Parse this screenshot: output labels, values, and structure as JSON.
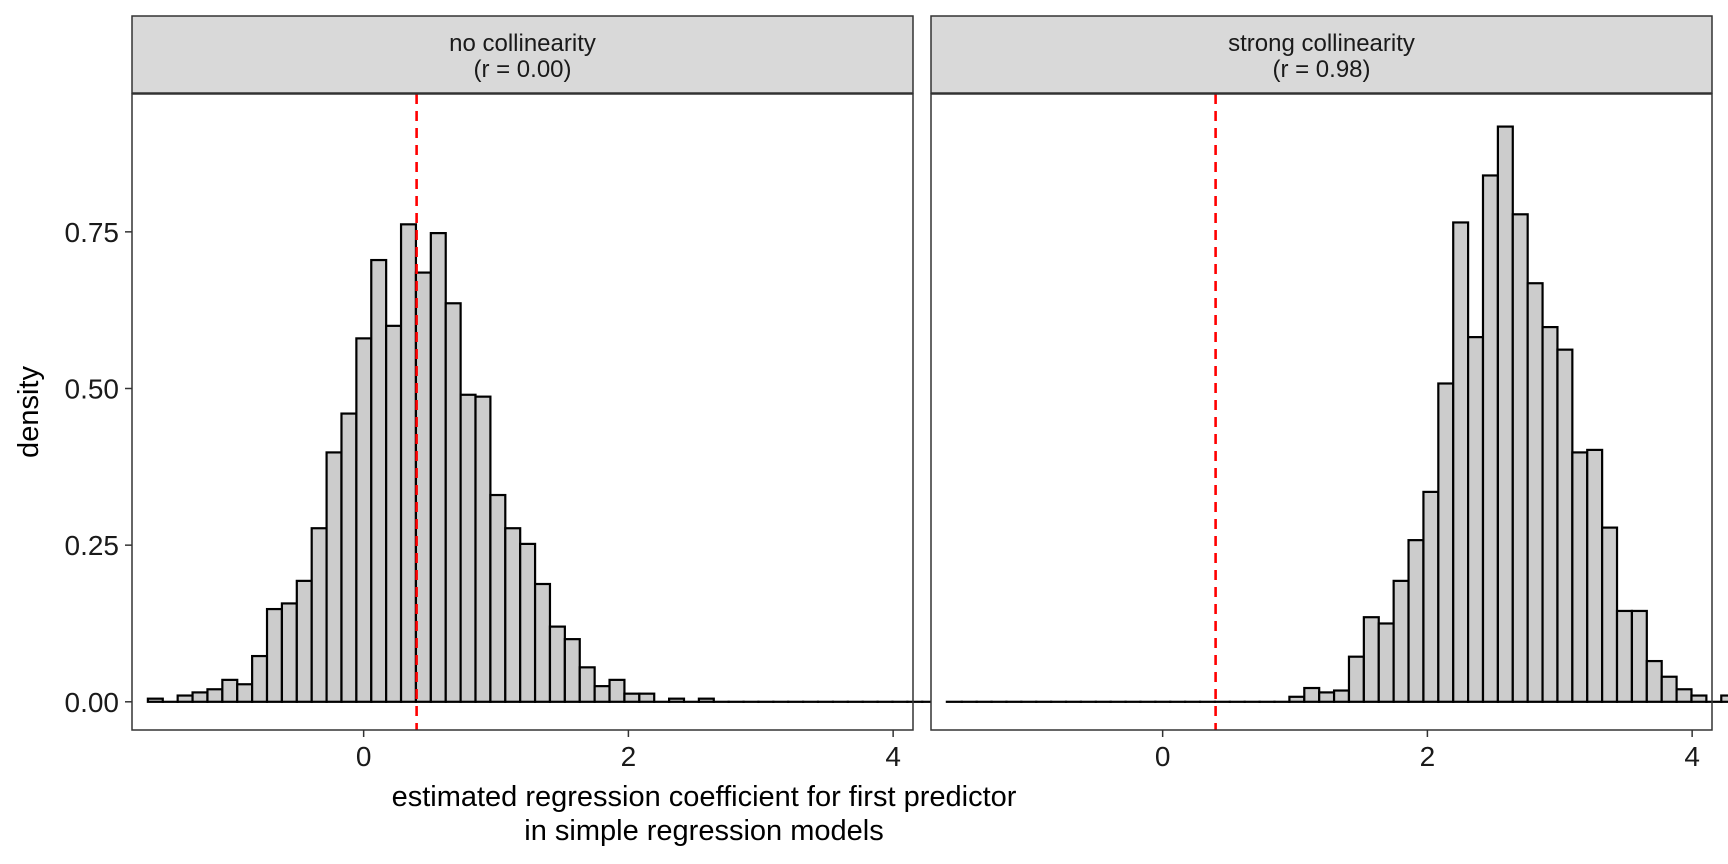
{
  "chart_data": {
    "type": "bar",
    "chart_kind": "faceted histogram",
    "ylabel": "density",
    "xlabel_lines": [
      "estimated regression coefficient for first predictor",
      "in simple regression models"
    ],
    "xlim": [
      -1.75,
      4.15
    ],
    "ylim": [
      -0.045,
      0.97
    ],
    "x_ticks": [
      0,
      2,
      4
    ],
    "y_ticks": [
      0.0,
      0.25,
      0.5,
      0.75
    ],
    "y_tick_labels": [
      "0.00",
      "0.25",
      "0.50",
      "0.75"
    ],
    "grid": false,
    "bin_start": -1.63,
    "bin_width": 0.1125,
    "colors": {
      "bar_fill": "#cccccc",
      "bar_outline": "#000000",
      "reference_line": "#ff0000",
      "strip_fill": "#d9d9d9"
    },
    "panels": [
      {
        "title_lines": [
          "no collinearity",
          "(r = 0.00)"
        ],
        "reference_x": 0.4,
        "densities": [
          0.005,
          0.0,
          0.01,
          0.015,
          0.02,
          0.035,
          0.028,
          0.073,
          0.148,
          0.157,
          0.193,
          0.277,
          0.398,
          0.46,
          0.58,
          0.705,
          0.6,
          0.762,
          0.685,
          0.748,
          0.636,
          0.49,
          0.487,
          0.33,
          0.277,
          0.252,
          0.188,
          0.12,
          0.1,
          0.055,
          0.025,
          0.035,
          0.013,
          0.013,
          0.0,
          0.005,
          0.0,
          0.005,
          0.0,
          0.0,
          0.0,
          0.0,
          0.0,
          0.0,
          0.0,
          0.0,
          0.0,
          0.0,
          0.0,
          0.0,
          0.0,
          0.0,
          0.0,
          0.0,
          0.0,
          0.0,
          0.0
        ]
      },
      {
        "title_lines": [
          "strong collinearity",
          "(r = 0.98)"
        ],
        "reference_x": 0.4,
        "densities": [
          0.0,
          0.0,
          0.0,
          0.0,
          0.0,
          0.0,
          0.0,
          0.0,
          0.0,
          0.0,
          0.0,
          0.0,
          0.0,
          0.0,
          0.0,
          0.0,
          0.0,
          0.0,
          0.0,
          0.0,
          0.0,
          0.0,
          0.0,
          0.008,
          0.022,
          0.015,
          0.018,
          0.072,
          0.135,
          0.125,
          0.193,
          0.258,
          0.335,
          0.508,
          0.765,
          0.582,
          0.84,
          0.918,
          0.778,
          0.668,
          0.598,
          0.562,
          0.398,
          0.402,
          0.278,
          0.145,
          0.145,
          0.065,
          0.04,
          0.02,
          0.01,
          0.0,
          0.01
        ]
      }
    ]
  }
}
